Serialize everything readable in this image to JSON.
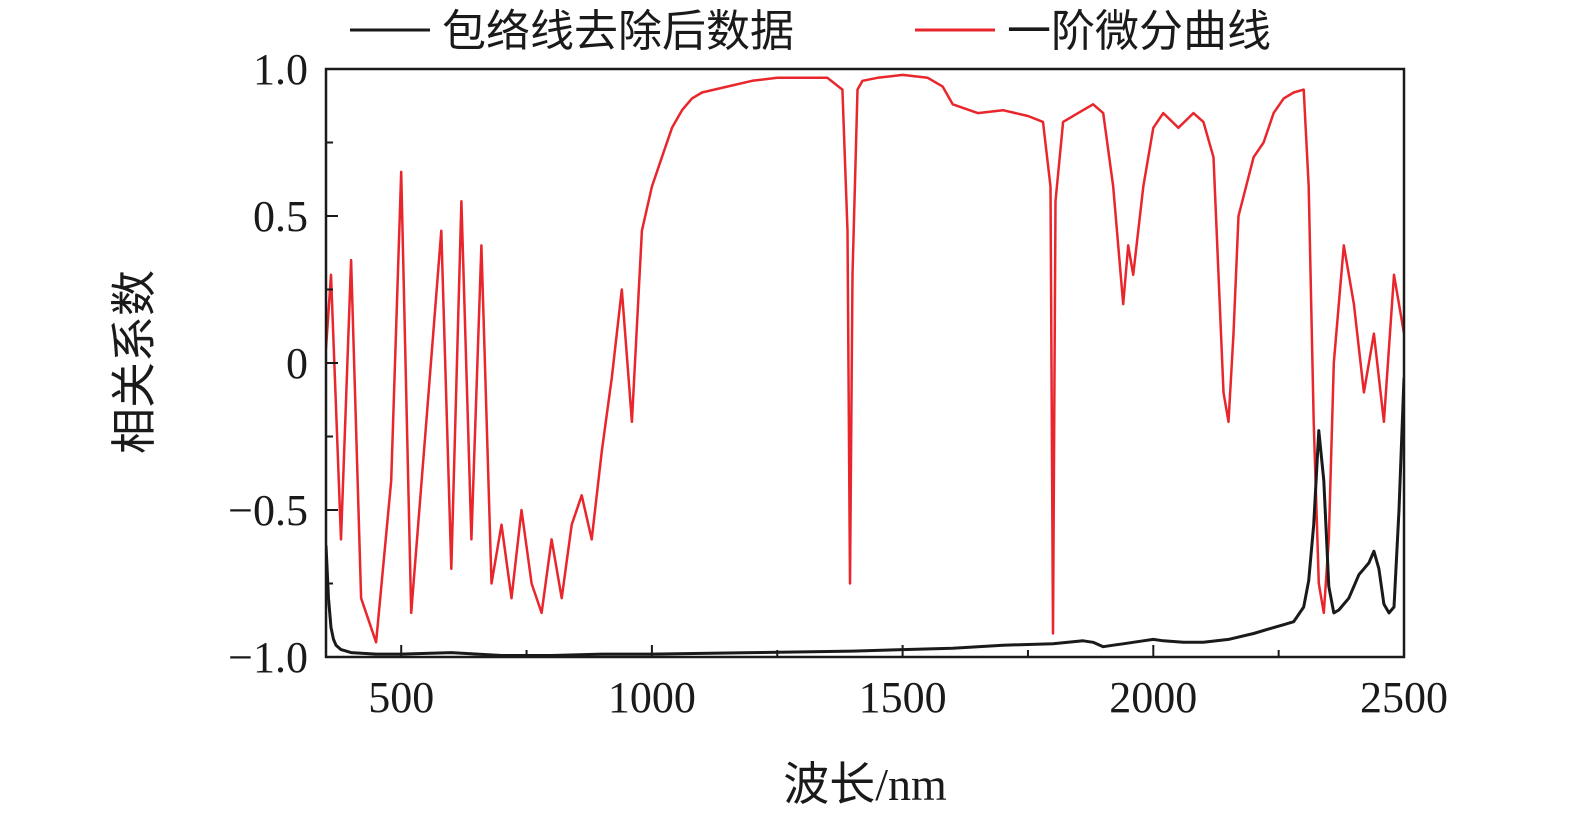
{
  "chart_data": {
    "type": "line",
    "xlabel": "波长/nm",
    "ylabel": "相关系数",
    "xlim": [
      350,
      2500
    ],
    "ylim": [
      -1.0,
      1.0
    ],
    "x_ticks": [
      500,
      1000,
      1500,
      2000,
      2500
    ],
    "x_tick_labels": [
      "500",
      "1000",
      "1500",
      "2000",
      "2500"
    ],
    "y_ticks": [
      1.0,
      0.5,
      0,
      -0.5,
      -1.0
    ],
    "y_tick_labels": [
      "1.0",
      "0.5",
      "0",
      "−0.5",
      "−1.0"
    ],
    "legend_position": "top",
    "grid": false,
    "series": [
      {
        "name": "包络线去除后数据",
        "color": "#1a1a1a",
        "x": [
          350,
          355,
          360,
          365,
          370,
          380,
          400,
          450,
          500,
          600,
          700,
          800,
          900,
          1000,
          1200,
          1400,
          1500,
          1600,
          1700,
          1800,
          1860,
          1880,
          1900,
          1920,
          1940,
          1960,
          1980,
          2000,
          2020,
          2060,
          2100,
          2150,
          2200,
          2240,
          2260,
          2280,
          2300,
          2310,
          2320,
          2330,
          2340,
          2350,
          2360,
          2370,
          2380,
          2390,
          2400,
          2410,
          2420,
          2430,
          2440,
          2450,
          2460,
          2470,
          2480,
          2490,
          2500
        ],
        "y": [
          -0.62,
          -0.8,
          -0.9,
          -0.94,
          -0.96,
          -0.975,
          -0.985,
          -0.99,
          -0.99,
          -0.985,
          -0.995,
          -0.995,
          -0.99,
          -0.99,
          -0.985,
          -0.98,
          -0.975,
          -0.97,
          -0.96,
          -0.955,
          -0.945,
          -0.95,
          -0.965,
          -0.96,
          -0.955,
          -0.95,
          -0.945,
          -0.94,
          -0.945,
          -0.95,
          -0.95,
          -0.94,
          -0.92,
          -0.9,
          -0.89,
          -0.88,
          -0.83,
          -0.74,
          -0.55,
          -0.23,
          -0.4,
          -0.76,
          -0.85,
          -0.84,
          -0.82,
          -0.8,
          -0.76,
          -0.72,
          -0.7,
          -0.68,
          -0.64,
          -0.7,
          -0.82,
          -0.85,
          -0.83,
          -0.5,
          -0.05
        ]
      },
      {
        "name": "一阶微分曲线",
        "color": "#e8262c",
        "x": [
          350,
          360,
          380,
          400,
          420,
          450,
          480,
          500,
          520,
          550,
          580,
          600,
          620,
          640,
          660,
          680,
          700,
          720,
          740,
          760,
          780,
          800,
          820,
          840,
          860,
          880,
          900,
          920,
          940,
          960,
          980,
          1000,
          1020,
          1040,
          1060,
          1080,
          1100,
          1150,
          1200,
          1250,
          1300,
          1350,
          1380,
          1390,
          1395,
          1400,
          1410,
          1420,
          1450,
          1500,
          1550,
          1580,
          1600,
          1650,
          1700,
          1750,
          1780,
          1795,
          1800,
          1805,
          1820,
          1850,
          1880,
          1900,
          1920,
          1940,
          1950,
          1960,
          1980,
          2000,
          2020,
          2050,
          2080,
          2100,
          2120,
          2130,
          2140,
          2150,
          2160,
          2170,
          2200,
          2220,
          2240,
          2260,
          2280,
          2300,
          2310,
          2320,
          2330,
          2340,
          2350,
          2360,
          2380,
          2400,
          2420,
          2440,
          2460,
          2480,
          2500
        ],
        "y": [
          0.05,
          0.3,
          -0.6,
          0.35,
          -0.8,
          -0.95,
          -0.4,
          0.65,
          -0.85,
          -0.2,
          0.45,
          -0.7,
          0.55,
          -0.6,
          0.4,
          -0.75,
          -0.55,
          -0.8,
          -0.5,
          -0.75,
          -0.85,
          -0.6,
          -0.8,
          -0.55,
          -0.45,
          -0.6,
          -0.3,
          -0.05,
          0.25,
          -0.2,
          0.45,
          0.6,
          0.7,
          0.8,
          0.86,
          0.9,
          0.92,
          0.94,
          0.96,
          0.97,
          0.97,
          0.97,
          0.93,
          0.45,
          -0.75,
          0.3,
          0.93,
          0.96,
          0.97,
          0.98,
          0.97,
          0.94,
          0.88,
          0.85,
          0.86,
          0.84,
          0.82,
          0.6,
          -0.92,
          0.55,
          0.82,
          0.85,
          0.88,
          0.85,
          0.6,
          0.2,
          0.4,
          0.3,
          0.6,
          0.8,
          0.85,
          0.8,
          0.85,
          0.82,
          0.7,
          0.3,
          -0.1,
          -0.2,
          0.1,
          0.5,
          0.7,
          0.75,
          0.85,
          0.9,
          0.92,
          0.93,
          0.6,
          -0.2,
          -0.75,
          -0.85,
          -0.6,
          0.0,
          0.4,
          0.2,
          -0.1,
          0.1,
          -0.2,
          0.3,
          0.1
        ]
      }
    ]
  }
}
